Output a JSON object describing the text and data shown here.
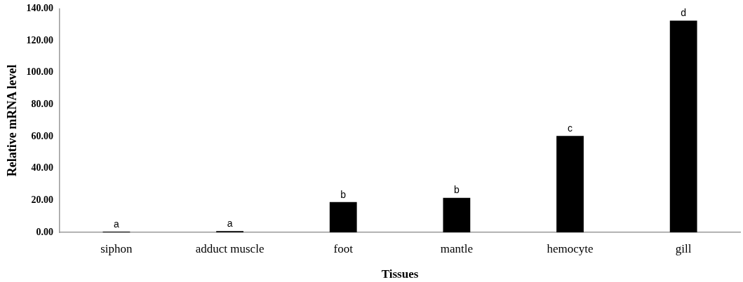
{
  "chart_data": {
    "type": "bar",
    "xlabel": "Tissues",
    "ylabel": "Relative mRNA level",
    "categories": [
      "siphon",
      "adduct muscle",
      "foot",
      "mantle",
      "hemocyte",
      "gill"
    ],
    "values": [
      0.5,
      0.9,
      19,
      21.7,
      60.4,
      132.5
    ],
    "color": "#000000",
    "ylim": [
      0,
      140
    ],
    "yticks": [
      {
        "value": 0,
        "label": "0.00"
      },
      {
        "value": 20,
        "label": "20.00"
      },
      {
        "value": 40,
        "label": "40.00"
      },
      {
        "value": 60,
        "label": "60.00"
      },
      {
        "value": 80,
        "label": "80.00"
      },
      {
        "value": 100,
        "label": "100.00"
      },
      {
        "value": 120,
        "label": "120.00"
      },
      {
        "value": 140,
        "label": "140.00"
      }
    ],
    "grid": false,
    "legend": false,
    "annotations": [
      {
        "text": "a",
        "x": "siphon",
        "y": 0.5
      },
      {
        "text": "a",
        "x": "adduct muscle",
        "y": 0.9
      },
      {
        "text": "b",
        "x": "foot",
        "y": 19
      },
      {
        "text": "b",
        "x": "mantle",
        "y": 21.7
      },
      {
        "text": "c",
        "x": "hemocyte",
        "y": 60.4
      },
      {
        "text": "d",
        "x": "gill",
        "y": 132.5
      }
    ]
  }
}
